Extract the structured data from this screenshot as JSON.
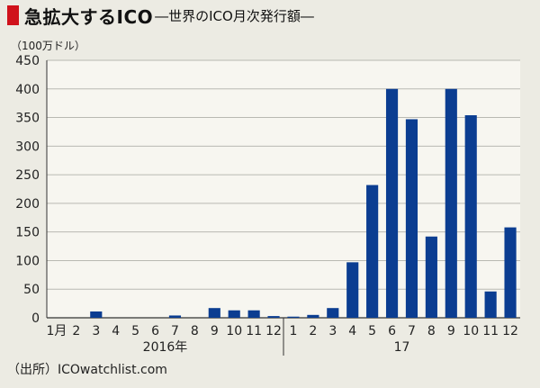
{
  "header": {
    "title_main": "急拡大するICO",
    "title_sub": "―世界のICO月次発行額―"
  },
  "source": "（出所）ICOwatchlist.com",
  "colors": {
    "bar": "#0b3d91",
    "background": "#ecebe3",
    "accent": "#d0121b",
    "grid": "#b9b9b2"
  },
  "chart_data": {
    "type": "bar",
    "ylabel": "（100万ドル）",
    "ylim": [
      0,
      450
    ],
    "yticks": [
      0,
      50,
      100,
      150,
      200,
      250,
      300,
      350,
      400,
      450
    ],
    "grid": true,
    "categories": [
      "1月",
      "2",
      "3",
      "4",
      "5",
      "6",
      "7",
      "8",
      "9",
      "10",
      "11",
      "12",
      "1",
      "2",
      "3",
      "4",
      "5",
      "6",
      "7",
      "8",
      "9",
      "10",
      "11",
      "12"
    ],
    "groups": [
      {
        "label": "2016年",
        "count": 12
      },
      {
        "label": "17",
        "count": 12
      }
    ],
    "values": [
      0,
      0,
      11,
      0,
      0,
      0,
      4,
      0,
      17,
      13,
      13,
      3,
      2,
      5,
      17,
      97,
      232,
      400,
      347,
      142,
      400,
      354,
      46,
      158
    ]
  }
}
